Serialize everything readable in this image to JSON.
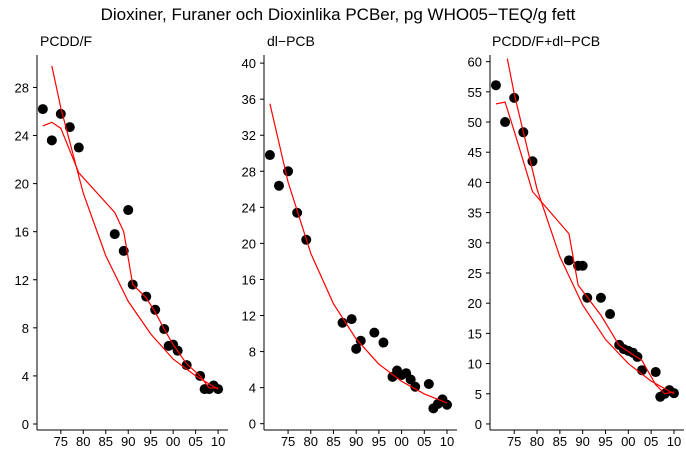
{
  "title": "Dioxiner, Furaner och Dioxinlika PCBer, pg WHO05−TEQ/g fett",
  "chart_data": [
    {
      "type": "scatter",
      "title": "PCDD/F",
      "xlim": [
        1969.7,
        2012.2
      ],
      "ylim": [
        -0.5,
        30.7
      ],
      "xticks": [
        {
          "value": 1975,
          "label": "75"
        },
        {
          "value": 1980,
          "label": "80"
        },
        {
          "value": 1985,
          "label": "85"
        },
        {
          "value": 1990,
          "label": "90"
        },
        {
          "value": 1995,
          "label": "95"
        },
        {
          "value": 2000,
          "label": "00"
        },
        {
          "value": 2005,
          "label": "05"
        },
        {
          "value": 2010,
          "label": "10"
        }
      ],
      "yticks": [
        0,
        4,
        8,
        12,
        16,
        20,
        24,
        28
      ],
      "series": [
        {
          "style": "points",
          "color": "#000000",
          "x": [
            1971,
            1973,
            1975,
            1977,
            1979,
            1987,
            1989,
            1990,
            1991,
            1994,
            1996,
            1998,
            1999,
            2000,
            2001,
            2003,
            2006,
            2007,
            2008,
            2009,
            2010
          ],
          "values": [
            26.2,
            23.6,
            25.8,
            24.7,
            23.0,
            15.8,
            14.4,
            17.8,
            11.6,
            10.6,
            9.5,
            7.9,
            6.5,
            6.6,
            6.1,
            4.9,
            4.0,
            2.9,
            2.9,
            3.2,
            2.9
          ]
        },
        {
          "style": "line",
          "color": "#ff0000",
          "x": [
            1973,
            1975,
            1980,
            1985,
            1990,
            1995,
            2000,
            2005,
            2010
          ],
          "values": [
            29.8,
            26.3,
            19.2,
            14.0,
            10.2,
            7.5,
            5.4,
            4.0,
            2.9
          ]
        },
        {
          "style": "line",
          "color": "#ff0000",
          "x": [
            1971,
            1973,
            1975,
            1979,
            1987,
            1989,
            1991,
            1994,
            1996,
            1998,
            2000,
            2003,
            2006,
            2008,
            2010
          ],
          "values": [
            24.8,
            25.1,
            24.6,
            20.9,
            17.6,
            16.0,
            11.6,
            10.5,
            9.3,
            7.9,
            6.6,
            5.0,
            4.0,
            3.0,
            3.0
          ]
        }
      ]
    },
    {
      "type": "scatter",
      "title": "dl−PCB",
      "xlim": [
        1969.7,
        2012.2
      ],
      "ylim": [
        -0.7,
        40.9
      ],
      "xticks": [
        {
          "value": 1975,
          "label": "75"
        },
        {
          "value": 1980,
          "label": "80"
        },
        {
          "value": 1985,
          "label": "85"
        },
        {
          "value": 1990,
          "label": "90"
        },
        {
          "value": 1995,
          "label": "95"
        },
        {
          "value": 2000,
          "label": "00"
        },
        {
          "value": 2005,
          "label": "05"
        },
        {
          "value": 2010,
          "label": "10"
        }
      ],
      "yticks": [
        0,
        4,
        8,
        12,
        16,
        20,
        24,
        28,
        32,
        36,
        40
      ],
      "series": [
        {
          "style": "points",
          "color": "#000000",
          "x": [
            1971,
            1973,
            1975,
            1977,
            1979,
            1987,
            1989,
            1990,
            1991,
            1994,
            1996,
            1998,
            1999,
            2000,
            2001,
            2002,
            2003,
            2006,
            2007,
            2008,
            2009,
            2010
          ],
          "values": [
            29.8,
            26.4,
            28.0,
            23.4,
            20.4,
            11.2,
            11.6,
            8.3,
            9.2,
            10.1,
            9.0,
            5.2,
            5.9,
            5.4,
            5.6,
            4.9,
            4.1,
            4.4,
            1.7,
            2.2,
            2.7,
            2.1
          ]
        },
        {
          "style": "line",
          "color": "#ff0000",
          "x": [
            1971,
            1975,
            1980,
            1985,
            1990,
            1995,
            2000,
            2005,
            2010
          ],
          "values": [
            35.5,
            26.8,
            18.9,
            13.3,
            9.4,
            6.6,
            4.7,
            3.3,
            2.3
          ]
        }
      ]
    },
    {
      "type": "scatter",
      "title": "PCDD/F+dl−PCB",
      "xlim": [
        1969.7,
        2012.2
      ],
      "ylim": [
        -1,
        61.1
      ],
      "xticks": [
        {
          "value": 1975,
          "label": "75"
        },
        {
          "value": 1980,
          "label": "80"
        },
        {
          "value": 1985,
          "label": "85"
        },
        {
          "value": 1990,
          "label": "90"
        },
        {
          "value": 1995,
          "label": "95"
        },
        {
          "value": 2000,
          "label": "00"
        },
        {
          "value": 2005,
          "label": "05"
        },
        {
          "value": 2010,
          "label": "10"
        }
      ],
      "yticks": [
        0,
        5,
        10,
        15,
        20,
        25,
        30,
        35,
        40,
        45,
        50,
        55,
        60
      ],
      "series": [
        {
          "style": "points",
          "color": "#000000",
          "x": [
            1971,
            1973,
            1975,
            1977,
            1979,
            1987,
            1989,
            1990,
            1991,
            1994,
            1996,
            1998,
            1999,
            2000,
            2001,
            2002,
            2003,
            2006,
            2007,
            2008,
            2009,
            2010
          ],
          "values": [
            56.1,
            50.0,
            54.0,
            48.3,
            43.5,
            27.1,
            26.2,
            26.2,
            20.9,
            20.9,
            18.2,
            13.1,
            12.4,
            12.1,
            11.8,
            11.1,
            8.9,
            8.6,
            4.5,
            5.0,
            5.6,
            5.1
          ]
        },
        {
          "style": "line",
          "color": "#ff0000",
          "x": [
            1973.5,
            1975,
            1980,
            1985,
            1990,
            1995,
            2000,
            2005,
            2010
          ],
          "values": [
            60.5,
            54.7,
            38.9,
            27.7,
            19.7,
            14.0,
            10.0,
            7.1,
            5.0
          ]
        },
        {
          "style": "line",
          "color": "#ff0000",
          "x": [
            1971,
            1973,
            1975,
            1979,
            1987,
            1989,
            1991,
            1994,
            1996,
            1998,
            2000,
            2003,
            2006,
            2008,
            2010
          ],
          "values": [
            53.0,
            53.3,
            48.5,
            38.5,
            31.5,
            23.0,
            21.0,
            18.0,
            15.5,
            13.0,
            12.0,
            10.5,
            6.5,
            5.0,
            5.3
          ]
        }
      ]
    }
  ]
}
